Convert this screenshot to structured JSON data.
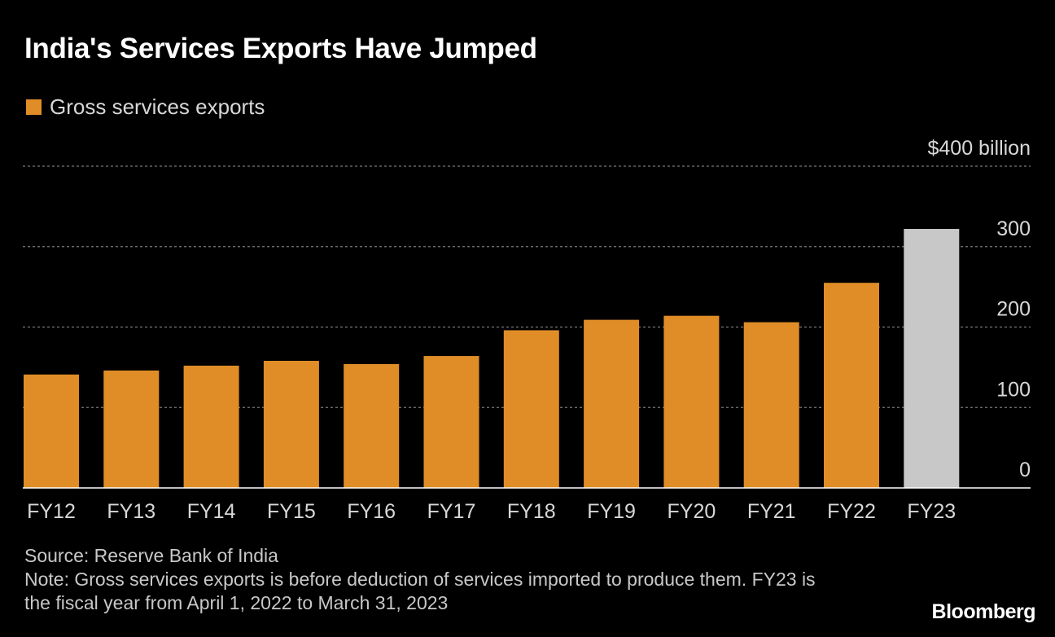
{
  "header": {
    "title": "India's Services Exports Have Jumped"
  },
  "legend": {
    "label": "Gross services exports"
  },
  "footer": {
    "source": "Source: Reserve Bank of India",
    "note": "Note: Gross services exports is before deduction of services imported to produce them. FY23 is the fiscal year from April 1, 2022 to March 31, 2023"
  },
  "brand": {
    "name": "Bloomberg"
  },
  "colors": {
    "bar": "#e08d27",
    "highlight": "#c8c8c8",
    "grid": "#7a7a7a",
    "baseline": "#ffffff"
  },
  "chart_data": {
    "type": "bar",
    "title": "India's Services Exports Have Jumped",
    "categories": [
      "FY12",
      "FY13",
      "FY14",
      "FY15",
      "FY16",
      "FY17",
      "FY18",
      "FY19",
      "FY20",
      "FY21",
      "FY22",
      "FY23"
    ],
    "values": [
      141,
      146,
      152,
      158,
      154,
      164,
      196,
      209,
      214,
      206,
      255,
      322
    ],
    "highlight_index": 11,
    "series": [
      {
        "name": "Gross services exports",
        "values": [
          141,
          146,
          152,
          158,
          154,
          164,
          196,
          209,
          214,
          206,
          255,
          322
        ]
      }
    ],
    "ylim": [
      0,
      400
    ],
    "yticks": [
      0,
      100,
      200,
      300,
      400
    ],
    "ytick_labels": [
      "0",
      "100",
      "200",
      "300",
      "$400 billion"
    ],
    "xlabel": "",
    "ylabel": "",
    "grid": true,
    "legend_position": "top-left"
  }
}
